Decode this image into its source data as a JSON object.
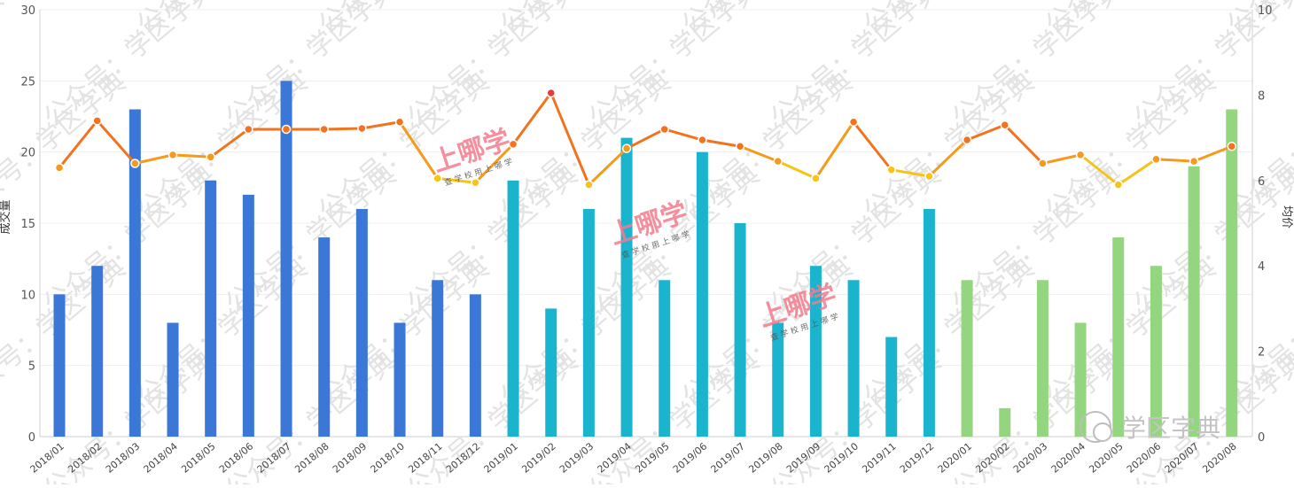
{
  "chart_data": {
    "type": "bar",
    "categories": [
      "2018/01",
      "2018/02",
      "2018/03",
      "2018/04",
      "2018/05",
      "2018/06",
      "2018/07",
      "2018/08",
      "2018/09",
      "2018/10",
      "2018/11",
      "2018/12",
      "2019/01",
      "2019/02",
      "2019/03",
      "2019/04",
      "2019/05",
      "2019/06",
      "2019/07",
      "2019/08",
      "2019/09",
      "2019/10",
      "2019/11",
      "2019/12",
      "2020/01",
      "2020/02",
      "2020/03",
      "2020/04",
      "2020/05",
      "2020/06",
      "2020/07",
      "2020/08"
    ],
    "series": [
      {
        "type": "bar",
        "axis": "left",
        "values": [
          10,
          12,
          23,
          8,
          18,
          17,
          25,
          14,
          16,
          8,
          11,
          10,
          18,
          9,
          16,
          21,
          11,
          20,
          15,
          8,
          12,
          11,
          7,
          16,
          11,
          2,
          11,
          8,
          14,
          12,
          19,
          23
        ]
      },
      {
        "type": "line",
        "axis": "right",
        "values": [
          6.3,
          7.4,
          6.4,
          6.6,
          6.55,
          7.2,
          7.2,
          7.2,
          7.22,
          7.37,
          6.05,
          5.95,
          6.85,
          8.05,
          5.9,
          6.75,
          7.2,
          6.95,
          6.8,
          6.45,
          6.05,
          7.37,
          6.25,
          6.1,
          6.95,
          7.3,
          6.4,
          6.6,
          5.9,
          6.5,
          6.45,
          6.8
        ]
      }
    ],
    "left_axis": {
      "label": "成交量",
      "ticks": [
        "0",
        "5",
        "10",
        "15",
        "20",
        "25",
        "30"
      ],
      "ylim": [
        0,
        30
      ]
    },
    "right_axis": {
      "label": "均价",
      "ticks": [
        "0",
        "2",
        "4",
        "6",
        "8",
        "10"
      ],
      "ylim": [
        0,
        10
      ]
    },
    "bar_colors": {
      "2018": "#3a77d6",
      "2019": "#1ab4cf",
      "2020": "#94d67f"
    },
    "line_colors": {
      "low": "#f6c417",
      "high": "#f2731f",
      "peak": "#e8393c"
    },
    "grid": true
  },
  "watermarks": {
    "text": "公众号：学区字典",
    "brand_main": "上哪学",
    "brand_sub": "查 学 校   用 上 哪 学",
    "corner_logo": "学区字典"
  }
}
